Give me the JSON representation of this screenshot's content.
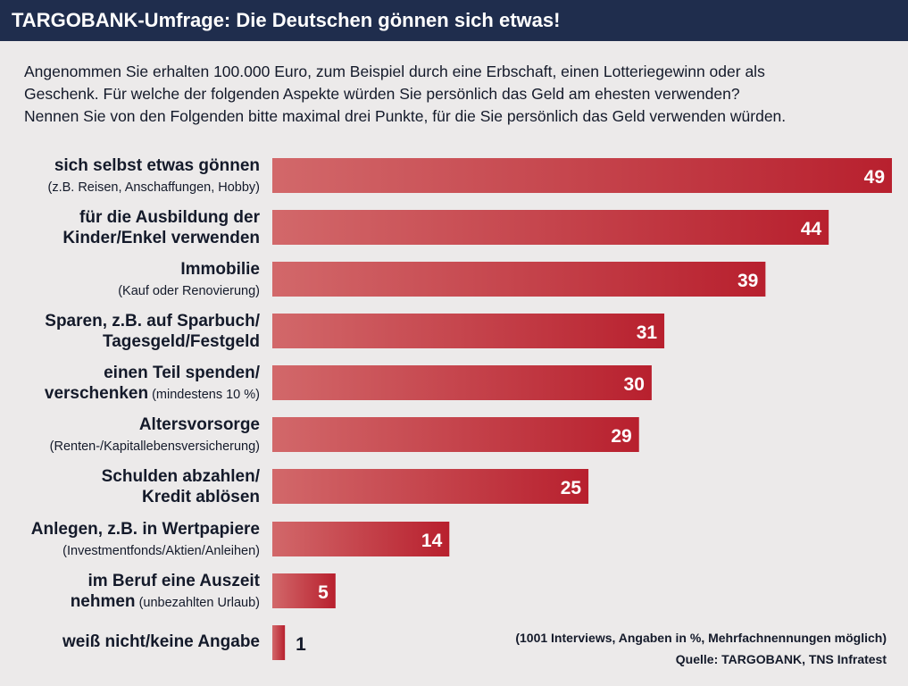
{
  "header": {
    "title": "TARGOBANK-Umfrage: Die Deutschen gönnen sich etwas!"
  },
  "question": {
    "lines": [
      "Angenommen Sie erhalten 100.000 Euro, zum Beispiel durch eine Erbschaft, einen Lotteriegewinn oder als",
      "Geschenk. Für welche der folgenden Aspekte würden Sie persönlich das Geld am ehesten verwenden?",
      "Nennen Sie von den Folgenden bitte maximal drei Punkte, für die Sie persönlich das Geld verwenden würden."
    ]
  },
  "rows": [
    {
      "line1": "sich selbst etwas gönnen",
      "line1_sub": "",
      "line2": "",
      "line2_sub": "(z.B. Reisen, Anschaffungen, Hobby)"
    },
    {
      "line1": "für die Ausbildung der",
      "line1_sub": "",
      "line2": "Kinder/Enkel verwenden",
      "line2_sub": ""
    },
    {
      "line1": "Immobilie",
      "line1_sub": "",
      "line2": "",
      "line2_sub": "(Kauf oder Renovierung)"
    },
    {
      "line1": "Sparen, z.B. auf Sparbuch/",
      "line1_sub": "",
      "line2": "Tagesgeld/Festgeld",
      "line2_sub": ""
    },
    {
      "line1": "einen Teil spenden/",
      "line1_sub": "",
      "line2": "verschenken",
      "line2_sub": " (mindestens 10 %)"
    },
    {
      "line1": "Altersvorsorge",
      "line1_sub": "",
      "line2": "",
      "line2_sub": "(Renten-/Kapitallebensversicherung)"
    },
    {
      "line1": "Schulden abzahlen/",
      "line1_sub": "",
      "line2": "Kredit ablösen",
      "line2_sub": ""
    },
    {
      "line1": "Anlegen, z.B. in Wertpapiere",
      "line1_sub": "",
      "line2": "",
      "line2_sub": "(Investmentfonds/Aktien/Anleihen)"
    },
    {
      "line1": "im Beruf eine Auszeit",
      "line1_sub": "",
      "line2": "nehmen",
      "line2_sub": " (unbezahlten Urlaub)"
    },
    {
      "line1": "weiß nicht/keine Angabe",
      "line1_sub": "",
      "line2": "",
      "line2_sub": ""
    }
  ],
  "footnote": {
    "line1": "(1001 Interviews, Angaben in %, Mehrfachnennungen möglich)",
    "line2": "Quelle: TARGOBANK, TNS Infratest"
  },
  "colors": {
    "bar_light": "#d2686a",
    "bar_dark": "#b8202e",
    "value_on_bar": "#ffffff",
    "value_off_bar": "#141a2a"
  },
  "chart_data": {
    "type": "bar",
    "orientation": "horizontal",
    "categories": [
      "sich selbst etwas gönnen (z.B. Reisen, Anschaffungen, Hobby)",
      "für die Ausbildung der Kinder/Enkel verwenden",
      "Immobilie (Kauf oder Renovierung)",
      "Sparen, z.B. auf Sparbuch/Tagesgeld/Festgeld",
      "einen Teil spenden/verschenken (mindestens 10 %)",
      "Altersvorsorge (Renten-/Kapitallebensversicherung)",
      "Schulden abzahlen/Kredit ablösen",
      "Anlegen, z.B. in Wertpapiere (Investmentfonds/Aktien/Anleihen)",
      "im Beruf eine Auszeit nehmen (unbezahlten Urlaub)",
      "weiß nicht/keine Angabe"
    ],
    "values": [
      49,
      44,
      39,
      31,
      30,
      29,
      25,
      14,
      5,
      1
    ],
    "xlim": [
      0,
      49
    ],
    "grid": false,
    "legend": "none"
  }
}
